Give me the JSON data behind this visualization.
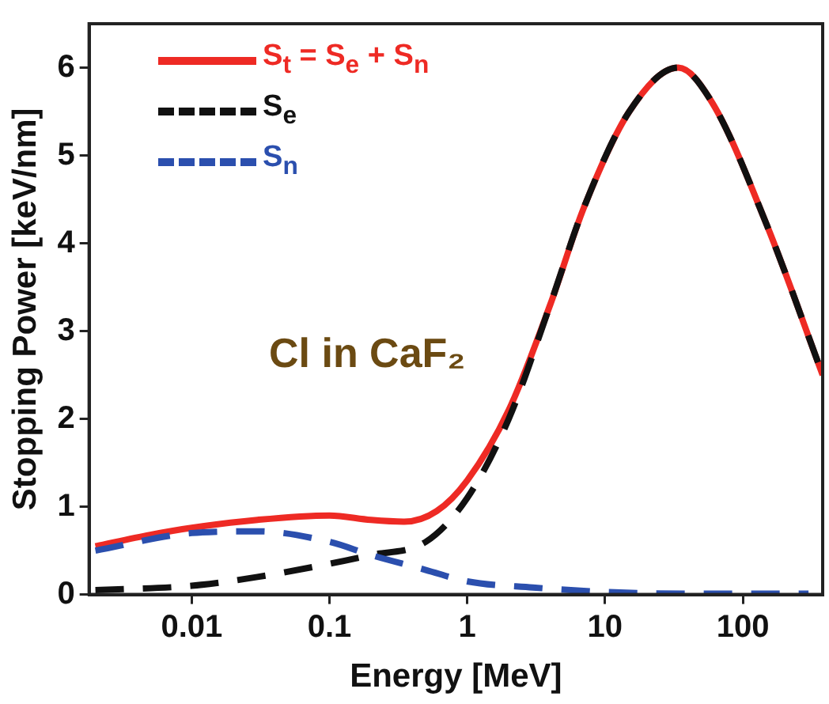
{
  "chart_data": {
    "type": "line",
    "xlabel": "Energy [MeV]",
    "ylabel": "Stopping Power [keV/nm]",
    "log": "x",
    "xlim": [
      0.0018,
      380
    ],
    "xticks": [
      0.01,
      0.1,
      1,
      10,
      100
    ],
    "ylim": [
      0,
      6.5
    ],
    "yticks": [
      0,
      1,
      2,
      3,
      4,
      5,
      6
    ],
    "grid": false,
    "legend": "top left",
    "annotations": [
      "Cl in CaF₂"
    ],
    "series": [
      {
        "name": "S$_{t}$ = S$_{e}$ + S$_{n}$",
        "color": "#ee2a24",
        "line_style": "solid",
        "x": [
          0.002,
          0.005,
          0.01,
          0.03,
          0.1,
          0.2,
          0.35,
          0.6,
          1,
          2,
          4,
          7,
          15,
          34,
          60,
          150,
          380
        ],
        "values": [
          0.55,
          0.68,
          0.76,
          0.85,
          0.9,
          0.85,
          0.83,
          0.95,
          1.3,
          2.1,
          3.3,
          4.4,
          5.5,
          6.0,
          5.6,
          4.2,
          2.5
        ]
      },
      {
        "name": "S$_{e}$",
        "color": "#111111",
        "line_style": "dashed",
        "x": [
          0.002,
          0.01,
          0.03,
          0.1,
          0.2,
          0.5,
          1,
          2,
          4,
          7,
          15,
          34,
          60,
          150,
          380
        ],
        "values": [
          0.05,
          0.1,
          0.2,
          0.35,
          0.45,
          0.6,
          1.1,
          2.0,
          3.3,
          4.4,
          5.5,
          6.0,
          5.6,
          4.2,
          2.5
        ]
      },
      {
        "name": "S$_{n}$",
        "color": "#2b4fae",
        "line_style": "dashed",
        "x": [
          0.002,
          0.01,
          0.03,
          0.1,
          0.2,
          0.5,
          1,
          3,
          10,
          40,
          300
        ],
        "values": [
          0.5,
          0.7,
          0.72,
          0.6,
          0.45,
          0.28,
          0.15,
          0.08,
          0.03,
          0.01,
          0.01
        ]
      }
    ]
  }
}
